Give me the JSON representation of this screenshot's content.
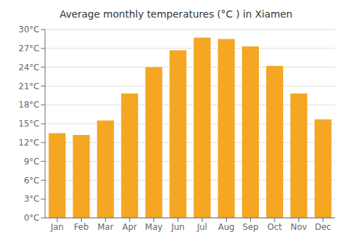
{
  "chart_data": {
    "type": "bar",
    "title": "Average monthly temperatures (°C ) in Xiamen",
    "categories": [
      "Jan",
      "Feb",
      "Mar",
      "Apr",
      "May",
      "Jun",
      "Jul",
      "Aug",
      "Sep",
      "Oct",
      "Nov",
      "Dec"
    ],
    "values": [
      13.5,
      13.2,
      15.5,
      19.8,
      24.0,
      26.7,
      28.7,
      28.5,
      27.3,
      24.2,
      19.8,
      15.7
    ],
    "color": "#F5A623",
    "ylim": [
      0,
      30
    ],
    "yticks": [
      {
        "value": 0,
        "label": "0°C"
      },
      {
        "value": 3,
        "label": "3°C"
      },
      {
        "value": 6,
        "label": "6°C"
      },
      {
        "value": 9,
        "label": "9°C"
      },
      {
        "value": 12,
        "label": "12°C"
      },
      {
        "value": 15,
        "label": "15°C"
      },
      {
        "value": 18,
        "label": "18°C"
      },
      {
        "value": 21,
        "label": "21°C"
      },
      {
        "value": 24,
        "label": "24°C"
      },
      {
        "value": 27,
        "label": "27°C"
      },
      {
        "value": 30,
        "label": "30°C"
      }
    ],
    "grid": true
  }
}
